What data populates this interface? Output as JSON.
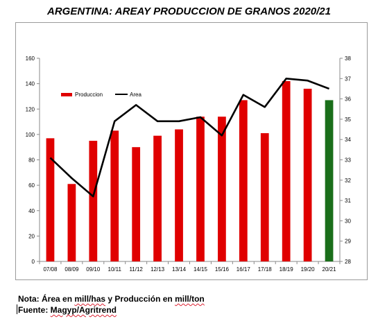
{
  "title": "ARGENTINA: AREAY PRODUCCION DE GRANOS 2020/21",
  "footer": {
    "note_prefix": "Nota: Área en ",
    "note_u1": "mill/has",
    "note_mid": " y Producción en ",
    "note_u2": "mill/ton",
    "source_prefix": "Fuente: ",
    "source_u": "Magyp/Agritrend"
  },
  "chart_data": {
    "type": "bar",
    "categories": [
      "07/08",
      "08/09",
      "09/10",
      "10/11",
      "11/12",
      "12/13",
      "13/14",
      "14/15",
      "15/16",
      "16/17",
      "17/18",
      "18/19",
      "19/20",
      "20/21"
    ],
    "series": [
      {
        "name": "Produccion",
        "type": "bar",
        "axis": "left",
        "values": [
          97,
          61,
          95,
          103,
          90,
          99,
          104,
          114,
          114,
          127,
          101,
          142,
          136,
          127
        ],
        "colors": [
          "#e00000",
          "#e00000",
          "#e00000",
          "#e00000",
          "#e00000",
          "#e00000",
          "#e00000",
          "#e00000",
          "#e00000",
          "#e00000",
          "#e00000",
          "#e00000",
          "#e00000",
          "#1a6e1a"
        ]
      },
      {
        "name": "Area",
        "type": "line",
        "axis": "right",
        "color": "#000000",
        "values": [
          33.1,
          32.1,
          31.2,
          34.9,
          35.7,
          34.9,
          34.9,
          35.1,
          34.2,
          36.2,
          35.6,
          37.0,
          36.9,
          36.5
        ]
      }
    ],
    "y_left": {
      "ylim": [
        0,
        160
      ],
      "ticks": [
        0,
        20,
        40,
        60,
        80,
        100,
        120,
        140,
        160
      ]
    },
    "y_right": {
      "ylim": [
        28,
        38
      ],
      "ticks": [
        28,
        29,
        30,
        31,
        32,
        33,
        34,
        35,
        36,
        37,
        38
      ]
    },
    "grid": false,
    "legend": {
      "placement": "top-left",
      "entries": [
        "Produccion",
        "Area"
      ]
    }
  }
}
